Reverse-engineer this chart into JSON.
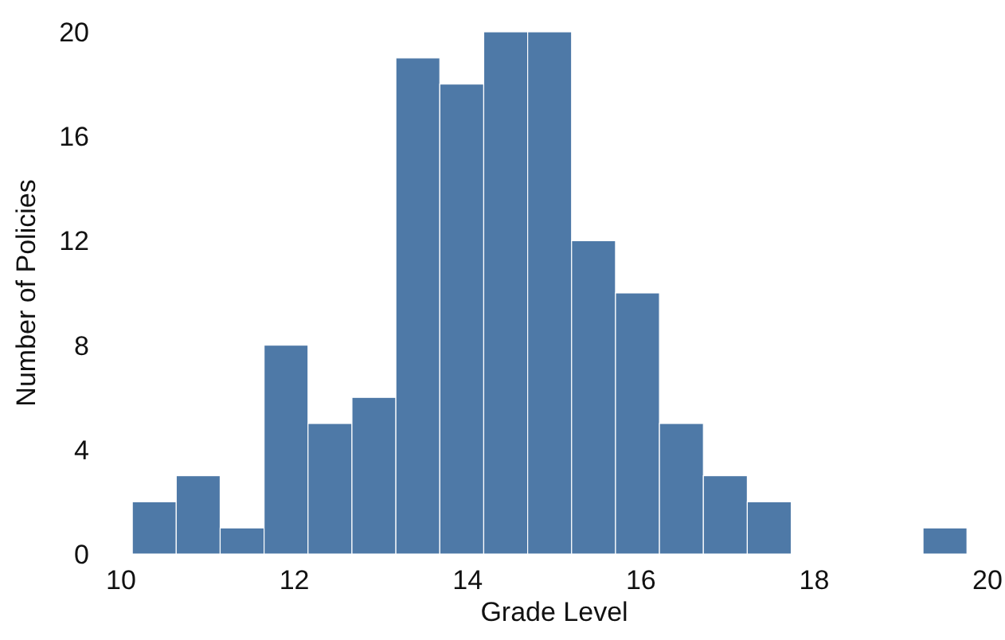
{
  "chart_data": {
    "type": "histogram",
    "xlabel": "Grade Level",
    "ylabel": "Number of Policies",
    "bins": [
      10.13,
      10.637,
      11.144,
      11.651,
      12.158,
      12.665,
      13.172,
      13.679,
      14.186,
      14.693,
      15.2,
      15.707,
      16.214,
      16.721,
      17.228,
      17.735,
      18.242,
      18.749,
      19.256,
      19.763
    ],
    "values": [
      2,
      3,
      1,
      8,
      5,
      6,
      19,
      18,
      20,
      20,
      12,
      10,
      5,
      3,
      2,
      0,
      0,
      0,
      1
    ],
    "color": "#4e79a7",
    "xlim": [
      10,
      20
    ],
    "xticks": [
      10,
      12,
      14,
      16,
      18,
      20
    ],
    "ylim": [
      0,
      20
    ],
    "yticks": [
      0,
      4,
      8,
      12,
      16,
      20
    ],
    "grid": false
  }
}
